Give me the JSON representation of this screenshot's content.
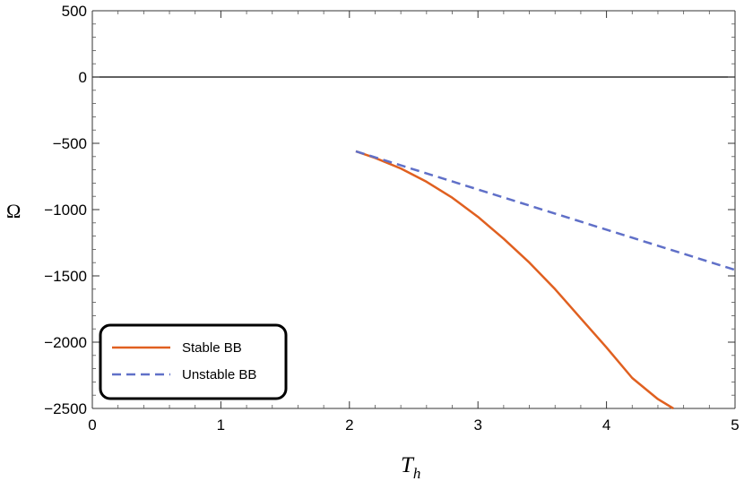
{
  "chart_data": {
    "type": "line",
    "xlabel": "T",
    "xlabel_subscript": "h",
    "ylabel": "Ω",
    "xlim": [
      0,
      5
    ],
    "ylim": [
      -2500,
      500
    ],
    "x_ticks": [
      0,
      1,
      2,
      3,
      4,
      5
    ],
    "x_tick_labels": [
      "0",
      "1",
      "2",
      "3",
      "4",
      "5"
    ],
    "y_ticks": [
      500,
      0,
      -500,
      -1000,
      -1500,
      -2000,
      -2500
    ],
    "y_tick_labels": [
      "500",
      "0",
      "-500",
      "-1000",
      "-1500",
      "-2000",
      "-2500"
    ],
    "reference_line_y": 0,
    "grid": false,
    "legend_position": "bottom-left",
    "series": [
      {
        "name": "Stable BB",
        "color": "#e06020",
        "style": "solid",
        "x": [
          2.05,
          2.2,
          2.4,
          2.6,
          2.8,
          3.0,
          3.2,
          3.4,
          3.6,
          3.8,
          4.0,
          4.2,
          4.4,
          4.52
        ],
        "y": [
          -560,
          -610,
          -690,
          -790,
          -910,
          -1055,
          -1220,
          -1400,
          -1600,
          -1820,
          -2040,
          -2270,
          -2430,
          -2500
        ]
      },
      {
        "name": "Unstable BB",
        "color": "#6070c8",
        "style": "dashed",
        "x": [
          2.05,
          5.0
        ],
        "y": [
          -560,
          -1455
        ]
      }
    ]
  }
}
